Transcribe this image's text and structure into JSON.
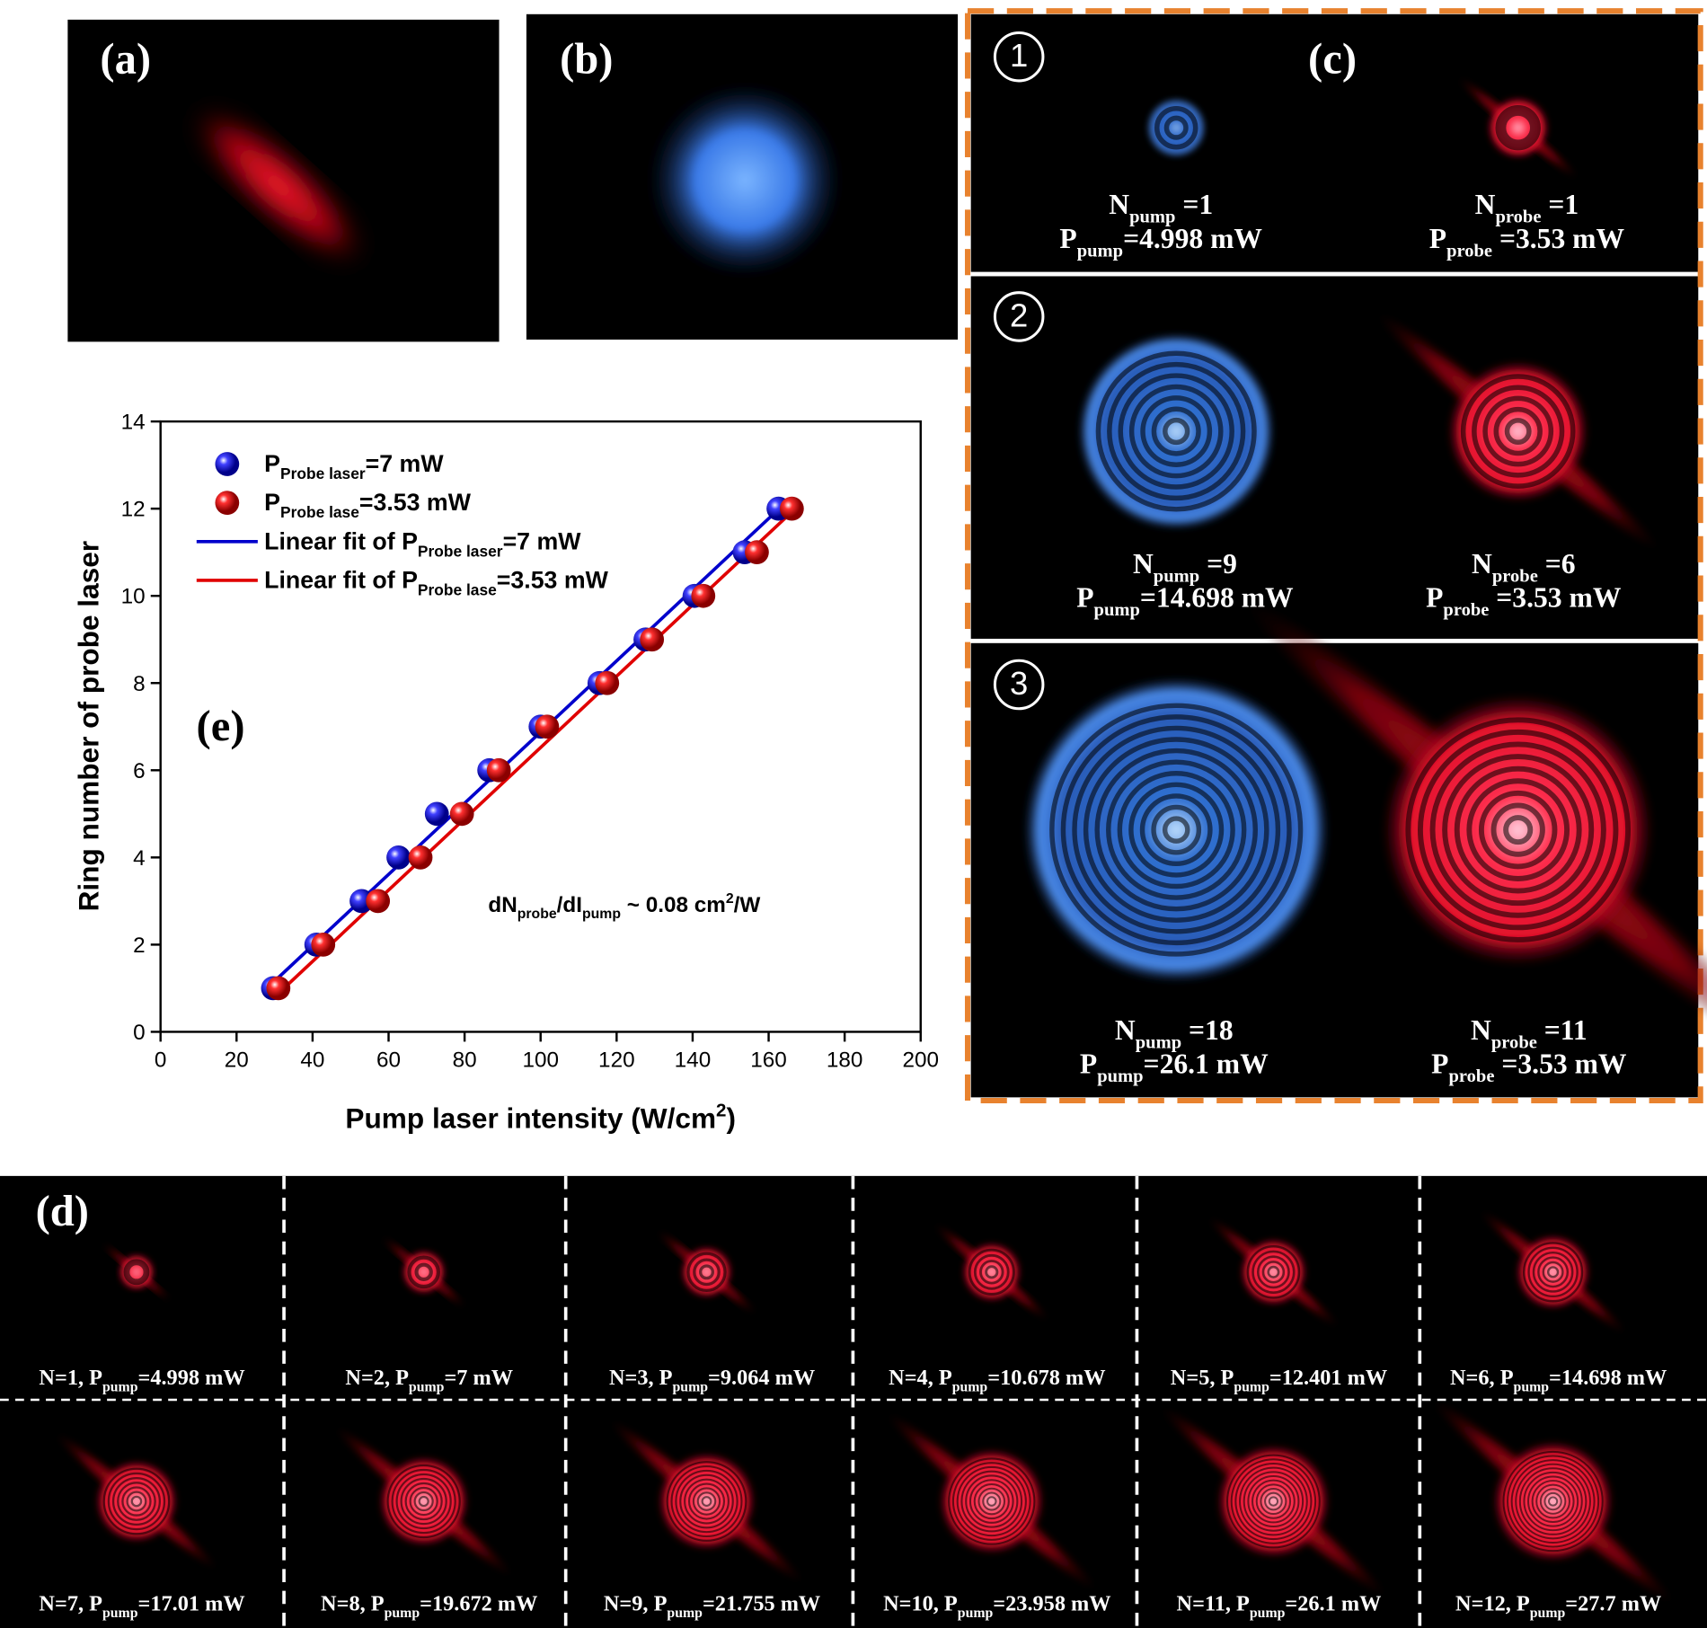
{
  "panels": {
    "a": {
      "label": "(a)"
    },
    "b": {
      "label": "(b)"
    },
    "c": {
      "label": "(c)",
      "rows": [
        {
          "marker": "1",
          "pump": [
            {
              "t": "N"
            },
            {
              "t": "pump",
              "s": "sub"
            },
            {
              "t": " =1"
            }
          ],
          "pump_power": [
            {
              "t": "P"
            },
            {
              "t": "pump",
              "s": "sub"
            },
            {
              "t": "=4.998 mW"
            }
          ],
          "probe": [
            {
              "t": "N"
            },
            {
              "t": "probe",
              "s": "sub"
            },
            {
              "t": " =1"
            }
          ],
          "probe_power": [
            {
              "t": "P"
            },
            {
              "t": "probe",
              "s": "sub"
            },
            {
              "t": " =3.53 mW"
            }
          ]
        },
        {
          "marker": "2",
          "pump": [
            {
              "t": "N"
            },
            {
              "t": "pump",
              "s": "sub"
            },
            {
              "t": " =9"
            }
          ],
          "pump_power": [
            {
              "t": "P"
            },
            {
              "t": "pump",
              "s": "sub"
            },
            {
              "t": "=14.698 mW"
            }
          ],
          "probe": [
            {
              "t": "N"
            },
            {
              "t": "probe",
              "s": "sub"
            },
            {
              "t": " =6"
            }
          ],
          "probe_power": [
            {
              "t": "P"
            },
            {
              "t": "probe",
              "s": "sub"
            },
            {
              "t": " =3.53 mW"
            }
          ]
        },
        {
          "marker": "3",
          "pump": [
            {
              "t": "N"
            },
            {
              "t": "pump",
              "s": "sub"
            },
            {
              "t": " =18"
            }
          ],
          "pump_power": [
            {
              "t": "P"
            },
            {
              "t": "pump",
              "s": "sub"
            },
            {
              "t": "=26.1 mW"
            }
          ],
          "probe": [
            {
              "t": "N"
            },
            {
              "t": "probe",
              "s": "sub"
            },
            {
              "t": " =11"
            }
          ],
          "probe_power": [
            {
              "t": "P"
            },
            {
              "t": "probe",
              "s": "sub"
            },
            {
              "t": " =3.53 mW"
            }
          ]
        }
      ]
    },
    "d": {
      "label": "(d)",
      "cells": [
        [
          {
            "t": "N=1, P"
          },
          {
            "t": "pump",
            "s": "sub"
          },
          {
            "t": "=4.998 mW"
          }
        ],
        [
          {
            "t": "N=2, P"
          },
          {
            "t": "pump",
            "s": "sub"
          },
          {
            "t": "=7 mW"
          }
        ],
        [
          {
            "t": "N=3, P"
          },
          {
            "t": "pump",
            "s": "sub"
          },
          {
            "t": "=9.064 mW"
          }
        ],
        [
          {
            "t": "N=4, P"
          },
          {
            "t": "pump",
            "s": "sub"
          },
          {
            "t": "=10.678 mW"
          }
        ],
        [
          {
            "t": "N=5, P"
          },
          {
            "t": "pump",
            "s": "sub"
          },
          {
            "t": "=12.401 mW"
          }
        ],
        [
          {
            "t": "N=6, P"
          },
          {
            "t": "pump",
            "s": "sub"
          },
          {
            "t": "=14.698 mW"
          }
        ],
        [
          {
            "t": "N=7, P"
          },
          {
            "t": "pump",
            "s": "sub"
          },
          {
            "t": "=17.01 mW"
          }
        ],
        [
          {
            "t": "N=8, P"
          },
          {
            "t": "pump",
            "s": "sub"
          },
          {
            "t": "=19.672 mW"
          }
        ],
        [
          {
            "t": "N=9, P"
          },
          {
            "t": "pump",
            "s": "sub"
          },
          {
            "t": "=21.755 mW"
          }
        ],
        [
          {
            "t": "N=10, P"
          },
          {
            "t": "pump",
            "s": "sub"
          },
          {
            "t": "=23.958 mW"
          }
        ],
        [
          {
            "t": "N=11, P"
          },
          {
            "t": "pump",
            "s": "sub"
          },
          {
            "t": "=26.1 mW"
          }
        ],
        [
          {
            "t": "N=12, P"
          },
          {
            "t": "pump",
            "s": "sub"
          },
          {
            "t": "=27.7 mW"
          }
        ]
      ]
    }
  },
  "chart_data": {
    "type": "scatter",
    "panel_label": "(e)",
    "x_label": [
      {
        "t": "Pump laser intensity (W/cm"
      },
      {
        "t": "2",
        "s": "sup"
      },
      {
        "t": ")"
      }
    ],
    "y_label": [
      {
        "t": "Ring number of probe laser"
      }
    ],
    "annotation": [
      {
        "t": "dN"
      },
      {
        "t": "probe",
        "s": "sub"
      },
      {
        "t": "/dI"
      },
      {
        "t": "pump",
        "s": "sub"
      },
      {
        "t": " ~ 0.08 cm"
      },
      {
        "t": "2",
        "s": "sup"
      },
      {
        "t": "/W"
      }
    ],
    "xlim": [
      0,
      200
    ],
    "ylim": [
      0,
      14
    ],
    "xticks": [
      0,
      20,
      40,
      60,
      80,
      100,
      120,
      140,
      160,
      180,
      200
    ],
    "yticks": [
      0,
      2,
      4,
      6,
      8,
      10,
      12,
      14
    ],
    "series": [
      {
        "name": [
          {
            "t": "P"
          },
          {
            "t": "Probe laser",
            "s": "sub"
          },
          {
            "t": "=7 mW"
          }
        ],
        "style": "points",
        "color": "#1010ee",
        "x": [
          29.6,
          41,
          52.9,
          62.6,
          72.7,
          86.5,
          100,
          115.5,
          127.6,
          140.5,
          153.7,
          162.6
        ],
        "values": [
          1,
          2,
          3,
          4,
          5,
          6,
          7,
          8,
          9,
          10,
          11,
          12
        ]
      },
      {
        "name": [
          {
            "t": "P"
          },
          {
            "t": "Probe lase",
            "s": "sub"
          },
          {
            "t": "=3.53 mW"
          }
        ],
        "style": "points",
        "color": "#ee1010",
        "x": [
          31,
          42.8,
          57.2,
          68.4,
          79.3,
          89,
          101.7,
          117.5,
          129.3,
          142.8,
          156.9,
          166.1
        ],
        "values": [
          1,
          2,
          3,
          4,
          5,
          6,
          7,
          8,
          9,
          10,
          11,
          12
        ]
      },
      {
        "name": [
          {
            "t": "Linear fit of P"
          },
          {
            "t": "Probe laser",
            "s": "sub"
          },
          {
            "t": "=7 mW"
          }
        ],
        "style": "line",
        "color": "#0000cc",
        "x": [
          29.6,
          164
        ],
        "values": [
          1.13,
          12.1
        ]
      },
      {
        "name": [
          {
            "t": "Linear fit of P"
          },
          {
            "t": "Probe lase",
            "s": "sub"
          },
          {
            "t": "=3.53 mW"
          }
        ],
        "style": "line",
        "color": "#e00000",
        "x": [
          31,
          167
        ],
        "values": [
          0.88,
          12.0
        ]
      }
    ]
  }
}
